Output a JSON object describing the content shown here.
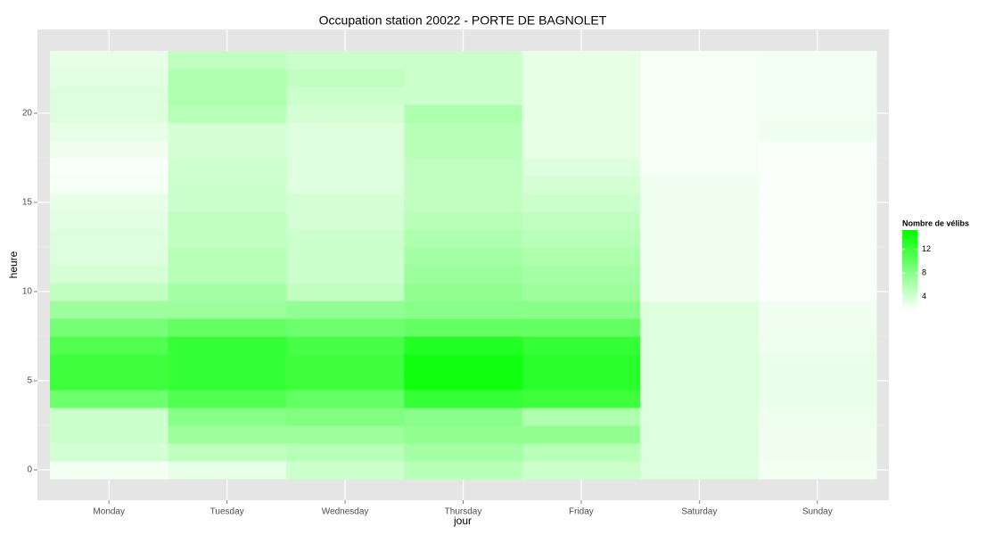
{
  "chart_data": {
    "type": "heatmap",
    "title": "Occupation station 20022 - PORTE DE BAGNOLET",
    "x_label": "jour",
    "y_label": "heure",
    "categories": [
      "Monday",
      "Tuesday",
      "Wednesday",
      "Thursday",
      "Friday",
      "Saturday",
      "Sunday"
    ],
    "y": [
      0,
      1,
      2,
      3,
      4,
      5,
      6,
      7,
      8,
      9,
      10,
      11,
      12,
      13,
      14,
      15,
      16,
      17,
      18,
      19,
      20,
      21,
      22,
      23
    ],
    "values": [
      [
        2.3,
        4,
        4.5,
        4.5,
        9.5,
        12,
        12,
        11,
        9,
        7,
        5,
        4,
        3.5,
        3.5,
        3.2,
        3,
        2.2,
        2,
        2.5,
        3,
        3.5,
        3.5,
        3.2,
        3
      ],
      [
        3,
        5,
        7,
        8,
        11,
        12.5,
        12.5,
        12.5,
        10,
        7,
        6.5,
        5.5,
        5.5,
        5,
        5,
        4.5,
        4.5,
        4.3,
        4,
        4,
        5.5,
        6,
        6,
        5
      ],
      [
        4.5,
        5.5,
        7,
        8.5,
        10,
        12,
        12,
        11.5,
        9.5,
        7.5,
        5,
        4.5,
        4.5,
        4.5,
        4,
        4,
        3.5,
        3.5,
        3.5,
        3.5,
        4,
        4.5,
        5,
        4.5
      ],
      [
        5.5,
        6.5,
        7.5,
        8,
        12.5,
        14.5,
        14.5,
        13.5,
        10,
        8,
        7.5,
        7,
        6.5,
        6,
        5.5,
        5,
        5,
        5,
        5.5,
        5.5,
        6,
        4.5,
        4.5,
        4.5
      ],
      [
        4.5,
        5.5,
        7.5,
        6,
        12,
        13,
        13,
        12.5,
        10,
        8,
        7,
        6.5,
        6,
        5.5,
        5,
        4.5,
        4,
        3.5,
        3,
        3,
        3,
        3,
        3,
        3
      ],
      [
        3.5,
        3.5,
        3.5,
        3.5,
        3.5,
        3.5,
        3.5,
        3.5,
        3.5,
        3.5,
        2.5,
        2.5,
        2.5,
        2.5,
        2.5,
        2.5,
        2.5,
        2.2,
        2.2,
        2.2,
        2.2,
        2.2,
        2.2,
        2.2
      ],
      [
        2.3,
        2.5,
        2.5,
        2.6,
        2.8,
        2.8,
        2.8,
        2.6,
        2.5,
        2.5,
        1.9,
        1.9,
        1.9,
        1.9,
        1.9,
        1.9,
        1.9,
        1.9,
        2,
        2.6,
        2.3,
        2.3,
        2.3,
        2.3
      ]
    ],
    "ylim": [
      -1.7,
      24.7
    ],
    "yticks": [
      0,
      5,
      10,
      15,
      20
    ],
    "legend_title": "Nombre de vélibs",
    "colorlim": [
      1.7,
      15.3
    ],
    "colorticks": [
      4,
      8,
      12
    ],
    "color_low": "#ffffff",
    "color_high": "#00ff00",
    "grid": true
  }
}
